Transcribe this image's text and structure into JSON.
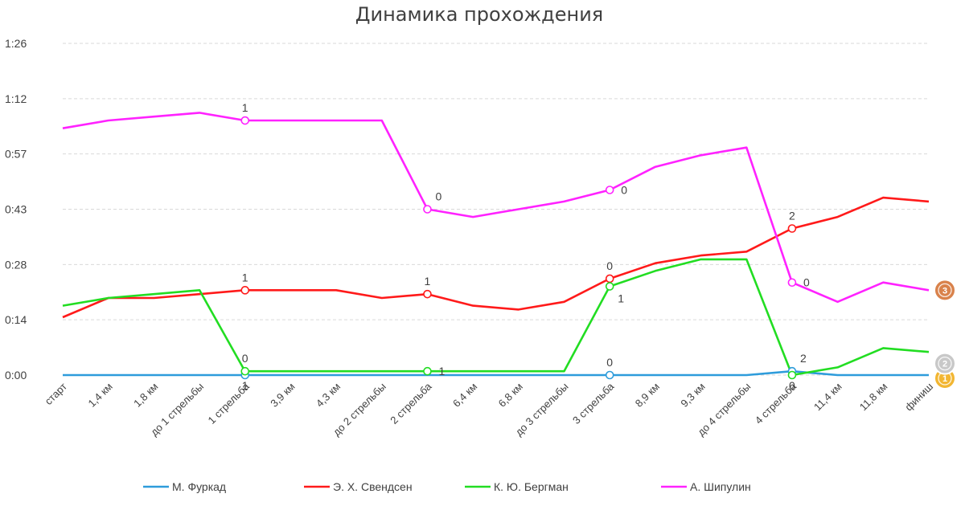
{
  "chart_data": {
    "type": "line",
    "title": "Динамика прохождения",
    "xlabel": "",
    "ylabel": "",
    "categories": [
      "старт",
      "1,4 км",
      "1,8 км",
      "до 1 стрельбы",
      "1 стрельба",
      "3,9 км",
      "4,3 км",
      "до 2 стрельбы",
      "2 стрельба",
      "6,4 км",
      "6,8 км",
      "до 3 стрельбы",
      "3 стрельба",
      "8,9 км",
      "9,3 км",
      "до 4 стрельбы",
      "4 стрельба",
      "11,4 км",
      "11,8 км",
      "финиш"
    ],
    "y_tick_labels": [
      "0:00",
      "0:14",
      "0:28",
      "0:43",
      "0:57",
      "1:12",
      "1:26"
    ],
    "ylim": [
      0,
      86
    ],
    "grid": true,
    "legend_position": "bottom",
    "series": [
      {
        "name": "М. Фуркад",
        "color": "#2e9cdb",
        "values": [
          0,
          0,
          0,
          0,
          0,
          0,
          0,
          0,
          0,
          0,
          0,
          0,
          0,
          0,
          0,
          0,
          1,
          0,
          0,
          0
        ],
        "markers": [
          {
            "index": 4,
            "label": "1",
            "pos": "below"
          },
          {
            "index": 12,
            "label": "0",
            "pos": "above"
          },
          {
            "index": 16,
            "label": "",
            "pos": "above"
          }
        ]
      },
      {
        "name": "Э. Х. Свендсен",
        "color": "#ff1a1a",
        "values": [
          15,
          20,
          20,
          21,
          22,
          22,
          22,
          20,
          21,
          18,
          17,
          19,
          25,
          29,
          31,
          32,
          38,
          41,
          46,
          45
        ],
        "markers": [
          {
            "index": 4,
            "label": "1",
            "pos": "above"
          },
          {
            "index": 8,
            "label": "1",
            "pos": "above"
          },
          {
            "index": 12,
            "label": "0",
            "pos": "above"
          },
          {
            "index": 16,
            "label": "2",
            "pos": "above"
          }
        ]
      },
      {
        "name": "К. Ю. Бергман",
        "color": "#22dd22",
        "values": [
          18,
          20,
          21,
          22,
          1,
          1,
          1,
          1,
          1,
          1,
          1,
          1,
          23,
          27,
          30,
          30,
          0,
          2,
          7,
          6
        ],
        "markers": [
          {
            "index": 4,
            "label": "0",
            "pos": "above"
          },
          {
            "index": 8,
            "label": "1",
            "pos": "right"
          },
          {
            "index": 12,
            "label": "1",
            "pos": "below-right"
          },
          {
            "index": 16,
            "label": "0",
            "pos": "below"
          }
        ]
      },
      {
        "name": "А. Шипулин",
        "color": "#ff22ff",
        "values": [
          64,
          66,
          67,
          68,
          66,
          66,
          66,
          66,
          43,
          41,
          43,
          45,
          48,
          54,
          57,
          59,
          24,
          19,
          24,
          22
        ],
        "markers": [
          {
            "index": 4,
            "label": "1",
            "pos": "above"
          },
          {
            "index": 8,
            "label": "0",
            "pos": "above-right"
          },
          {
            "index": 12,
            "label": "0",
            "pos": "right"
          },
          {
            "index": 16,
            "label": "0",
            "pos": "right"
          }
        ]
      }
    ],
    "podium": [
      {
        "place": "1",
        "series": "М. Фуркад",
        "kind": "gold-medal-icon",
        "color": "#f2b632"
      },
      {
        "place": "2",
        "series": "К. Ю. Бергман",
        "kind": "silver-medal-icon",
        "color": "#c8c8c8"
      },
      {
        "place": "3",
        "series": "А. Шипулин",
        "kind": "bronze-medal-icon",
        "color": "#d9824b"
      }
    ]
  },
  "extra_labels": [
    {
      "series": 0,
      "index": 16,
      "text": "2",
      "pos": "above-right"
    }
  ]
}
